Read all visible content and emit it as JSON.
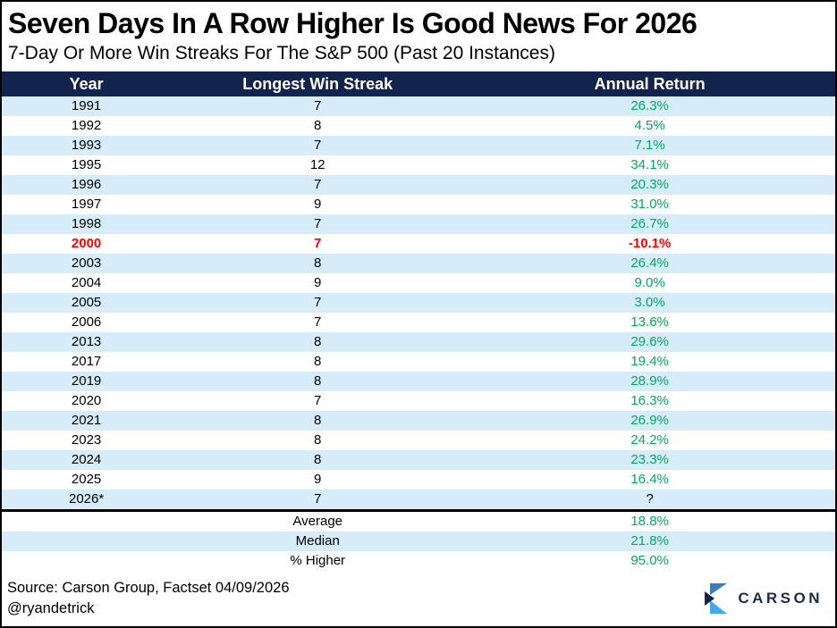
{
  "title": "Seven Days In A Row Higher Is Good News For 2026",
  "subtitle": "7-Day Or More Win Streaks For The S&P 500 (Past 20 Instances)",
  "chart_data": {
    "type": "table",
    "columns": [
      "Year",
      "Longest Win Streak",
      "Annual Return"
    ],
    "rows": [
      {
        "year": "1991",
        "streak": "7",
        "annual_return": "26.3%",
        "style": "positive"
      },
      {
        "year": "1992",
        "streak": "8",
        "annual_return": "4.5%",
        "style": "positive"
      },
      {
        "year": "1993",
        "streak": "7",
        "annual_return": "7.1%",
        "style": "positive"
      },
      {
        "year": "1995",
        "streak": "12",
        "annual_return": "34.1%",
        "style": "positive"
      },
      {
        "year": "1996",
        "streak": "7",
        "annual_return": "20.3%",
        "style": "positive"
      },
      {
        "year": "1997",
        "streak": "9",
        "annual_return": "31.0%",
        "style": "positive"
      },
      {
        "year": "1998",
        "streak": "7",
        "annual_return": "26.7%",
        "style": "positive"
      },
      {
        "year": "2000",
        "streak": "7",
        "annual_return": "-10.1%",
        "style": "negative"
      },
      {
        "year": "2003",
        "streak": "8",
        "annual_return": "26.4%",
        "style": "positive"
      },
      {
        "year": "2004",
        "streak": "9",
        "annual_return": "9.0%",
        "style": "positive"
      },
      {
        "year": "2005",
        "streak": "7",
        "annual_return": "3.0%",
        "style": "positive"
      },
      {
        "year": "2006",
        "streak": "7",
        "annual_return": "13.6%",
        "style": "positive"
      },
      {
        "year": "2013",
        "streak": "8",
        "annual_return": "29.6%",
        "style": "positive"
      },
      {
        "year": "2017",
        "streak": "8",
        "annual_return": "19.4%",
        "style": "positive"
      },
      {
        "year": "2019",
        "streak": "8",
        "annual_return": "28.9%",
        "style": "positive"
      },
      {
        "year": "2020",
        "streak": "7",
        "annual_return": "16.3%",
        "style": "positive"
      },
      {
        "year": "2021",
        "streak": "8",
        "annual_return": "26.9%",
        "style": "positive"
      },
      {
        "year": "2023",
        "streak": "8",
        "annual_return": "24.2%",
        "style": "positive"
      },
      {
        "year": "2024",
        "streak": "8",
        "annual_return": "23.3%",
        "style": "positive"
      },
      {
        "year": "2025",
        "streak": "9",
        "annual_return": "16.4%",
        "style": "positive"
      },
      {
        "year": "2026*",
        "streak": "7",
        "annual_return": "?",
        "style": "unknown"
      }
    ],
    "summary_rows": [
      {
        "label": "Average",
        "value": "18.8%"
      },
      {
        "label": "Median",
        "value": "21.8%"
      },
      {
        "label": "% Higher",
        "value": "95.0%"
      }
    ],
    "grid": false,
    "legend_position": "none"
  },
  "footer": {
    "source": "Source: Carson Group, Factset 04/09/2026",
    "handle": "@ryandetrick",
    "logo_text": "CARSON"
  },
  "colors": {
    "header_background": "#12234e",
    "stripe_blue": "#d7ecf9",
    "positive_green": "#00a95f",
    "negative_red": "#ff0000",
    "logo_navy": "#1b2b4d",
    "logo_blue_top": "#3b7ec0",
    "logo_blue_bottom": "#41a9f0"
  }
}
